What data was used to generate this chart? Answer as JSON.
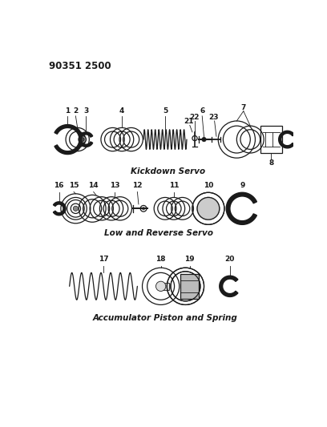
{
  "title_code": "90351 2500",
  "bg_color": "#ffffff",
  "line_color": "#1a1a1a",
  "section1_label": "Kickdown Servo",
  "section2_label": "Low and Reverse Servo",
  "section3_label": "Accumulator Piston and Spring"
}
